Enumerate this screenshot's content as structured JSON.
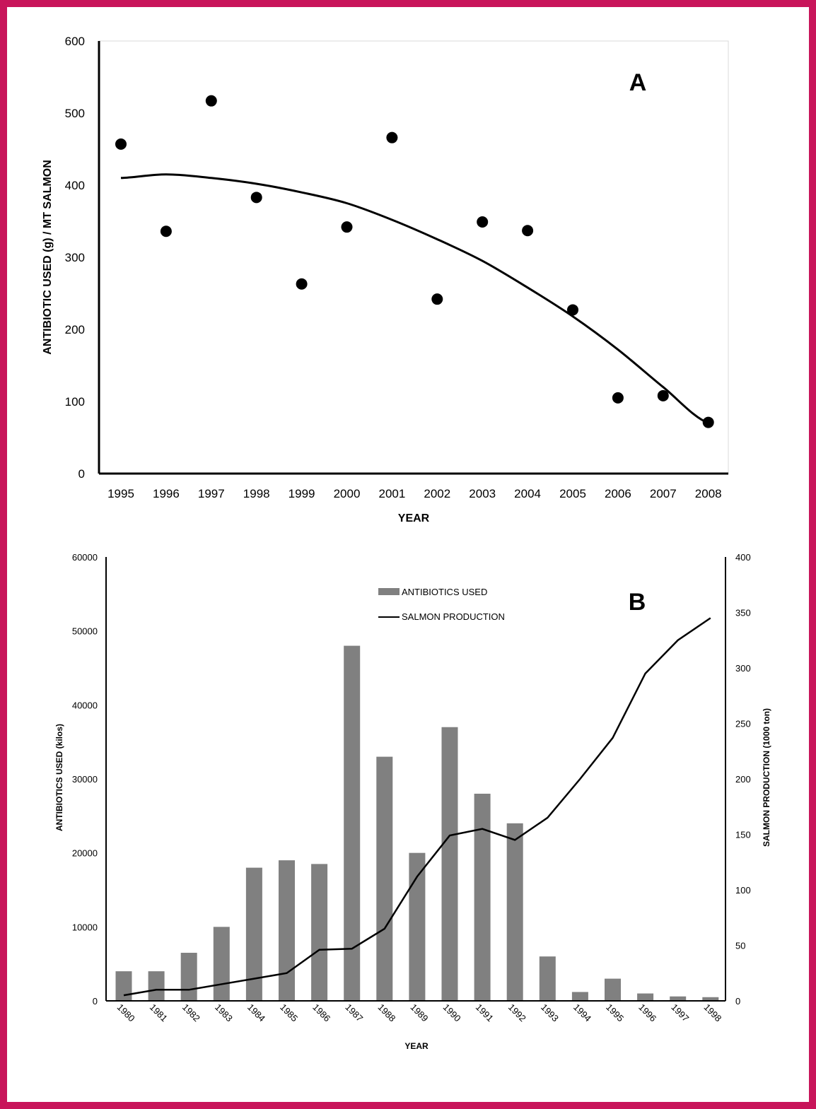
{
  "colors": {
    "frame": "#c8155a",
    "bars": "#808080",
    "line": "#000000",
    "points": "#000000"
  },
  "chart_data": [
    {
      "type": "scatter",
      "panel_label": "A",
      "xlabel": "YEAR",
      "ylabel": "ANTIBIOTIC USED (g) / MT SALMON",
      "categories": [
        "1995",
        "1996",
        "1997",
        "1998",
        "1999",
        "2000",
        "2001",
        "2002",
        "2003",
        "2004",
        "2005",
        "2006",
        "2007",
        "2008"
      ],
      "values": [
        457,
        336,
        517,
        383,
        263,
        342,
        466,
        242,
        349,
        337,
        227,
        105,
        108,
        71
      ],
      "trendline": {
        "type": "polynomial-2",
        "values": [
          410,
          415,
          410,
          402,
          390,
          375,
          352,
          325,
          295,
          258,
          218,
          172,
          120,
          70
        ]
      },
      "ylim": [
        0,
        600
      ],
      "yticks": [
        0,
        100,
        200,
        300,
        400,
        500,
        600
      ],
      "grid": false
    },
    {
      "type": "bar+line",
      "panel_label": "B",
      "xlabel": "YEAR",
      "ylabel": "ANTIBIOTICS USED (kilos)",
      "y2label": "SALMON PRODUCTION (1000 ton)",
      "categories": [
        "1980",
        "1981",
        "1982",
        "1983",
        "1984",
        "1985",
        "1986",
        "1987",
        "1988",
        "1989",
        "1990",
        "1991",
        "1992",
        "1993",
        "1994",
        "1995",
        "1996",
        "1997",
        "1998"
      ],
      "series": [
        {
          "name": "ANTIBIOTICS USED",
          "type": "bar",
          "axis": "left",
          "values": [
            4000,
            4000,
            6500,
            10000,
            18000,
            19000,
            18500,
            48000,
            33000,
            20000,
            37000,
            28000,
            24000,
            6000,
            1200,
            3000,
            1000,
            600,
            500
          ]
        },
        {
          "name": "SALMON PRODUCTION",
          "type": "line",
          "axis": "right",
          "values": [
            5,
            10,
            10,
            15,
            20,
            25,
            46,
            47,
            65,
            112,
            149,
            155,
            145,
            165,
            200,
            237,
            295,
            325,
            345
          ]
        }
      ],
      "ylim": [
        0,
        60000
      ],
      "yticks": [
        0,
        10000,
        20000,
        30000,
        40000,
        50000,
        60000
      ],
      "y2lim": [
        0,
        400
      ],
      "y2ticks": [
        0,
        50,
        100,
        150,
        200,
        250,
        300,
        350,
        400
      ],
      "legend_position": "top-center",
      "grid": false
    }
  ]
}
